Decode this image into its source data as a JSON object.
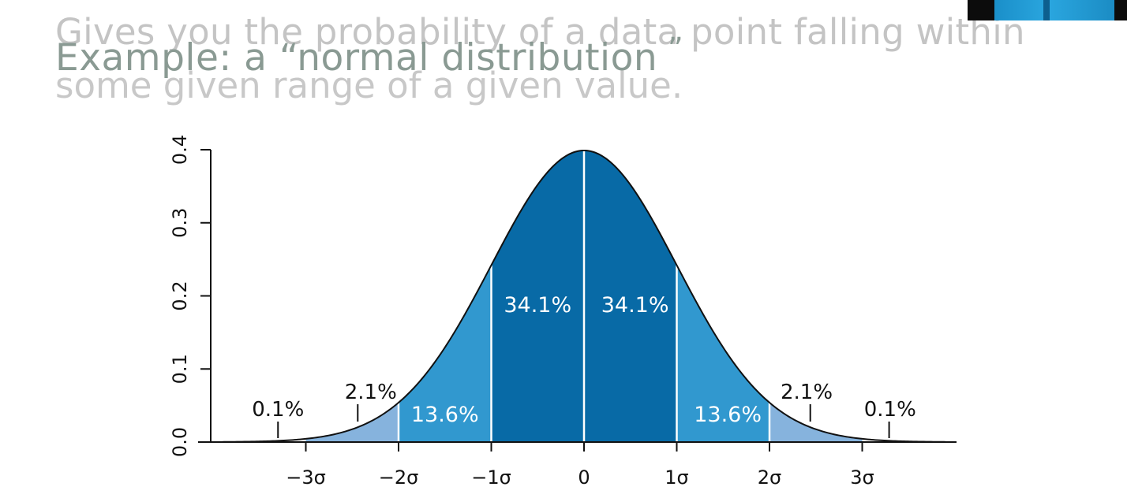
{
  "slide": {
    "ghost_line_1": "Gives you the probability of a data point falling within",
    "ghost_line_2": "some given range of a given value.",
    "title": "Example: a “normal distribution",
    "title_close_quote": "”"
  },
  "webcam": {
    "icon": "presenter-webcam-thumbnail"
  },
  "chart_data": {
    "type": "area",
    "curve": "standard normal probability density",
    "mean": 0,
    "sd": 1,
    "xlim": [
      -3.9,
      3.9
    ],
    "ylim": [
      0,
      0.4
    ],
    "x_ticks": [
      -3,
      -2,
      -1,
      0,
      1,
      2,
      3
    ],
    "x_tick_labels": [
      "−3σ",
      "−2σ",
      "−1σ",
      "0",
      "1σ",
      "2σ",
      "3σ"
    ],
    "y_ticks": [
      0.0,
      0.1,
      0.2,
      0.3,
      0.4
    ],
    "y_tick_labels": [
      "0.0",
      "0.1",
      "0.2",
      "0.3",
      "0.4"
    ],
    "bands": [
      {
        "from": -3,
        "to": -2,
        "percent": "2.1%",
        "color": "#86b3dd"
      },
      {
        "from": -2,
        "to": -1,
        "percent": "13.6%",
        "color": "#3198cf"
      },
      {
        "from": -1,
        "to": 0,
        "percent": "34.1%",
        "color": "#086aa6"
      },
      {
        "from": 0,
        "to": 1,
        "percent": "34.1%",
        "color": "#086aa6"
      },
      {
        "from": 1,
        "to": 2,
        "percent": "13.6%",
        "color": "#3198cf"
      },
      {
        "from": 2,
        "to": 3,
        "percent": "2.1%",
        "color": "#86b3dd"
      }
    ],
    "tails": [
      {
        "side": "left",
        "percent": "0.1%"
      },
      {
        "side": "right",
        "percent": "0.1%"
      }
    ],
    "grid": false,
    "legend": "none"
  }
}
